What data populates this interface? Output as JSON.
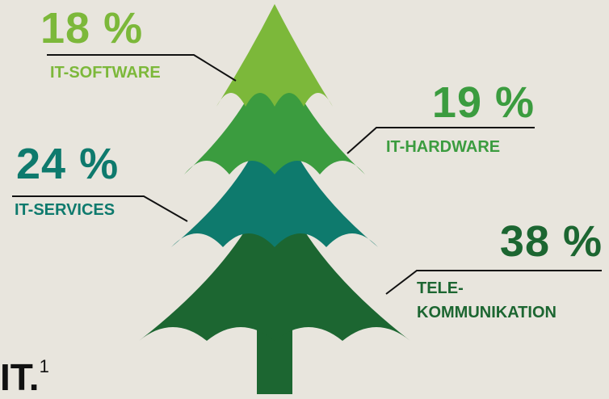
{
  "chart_data": {
    "type": "tree",
    "categories": [
      "IT-SOFTWARE",
      "IT-HARDWARE",
      "IT-SERVICES",
      "TELE-KOMMUNIKATION"
    ],
    "values": [
      18,
      19,
      24,
      38
    ],
    "value_labels": [
      "18 %",
      "19 %",
      "24 %",
      "38 %"
    ],
    "colors": [
      "#7cb83a",
      "#3b9c3f",
      "#0e7a6d",
      "#1c6631"
    ],
    "trunk_color": "#1c6631",
    "footnote_text": "IT.",
    "footnote_mark": "1"
  }
}
